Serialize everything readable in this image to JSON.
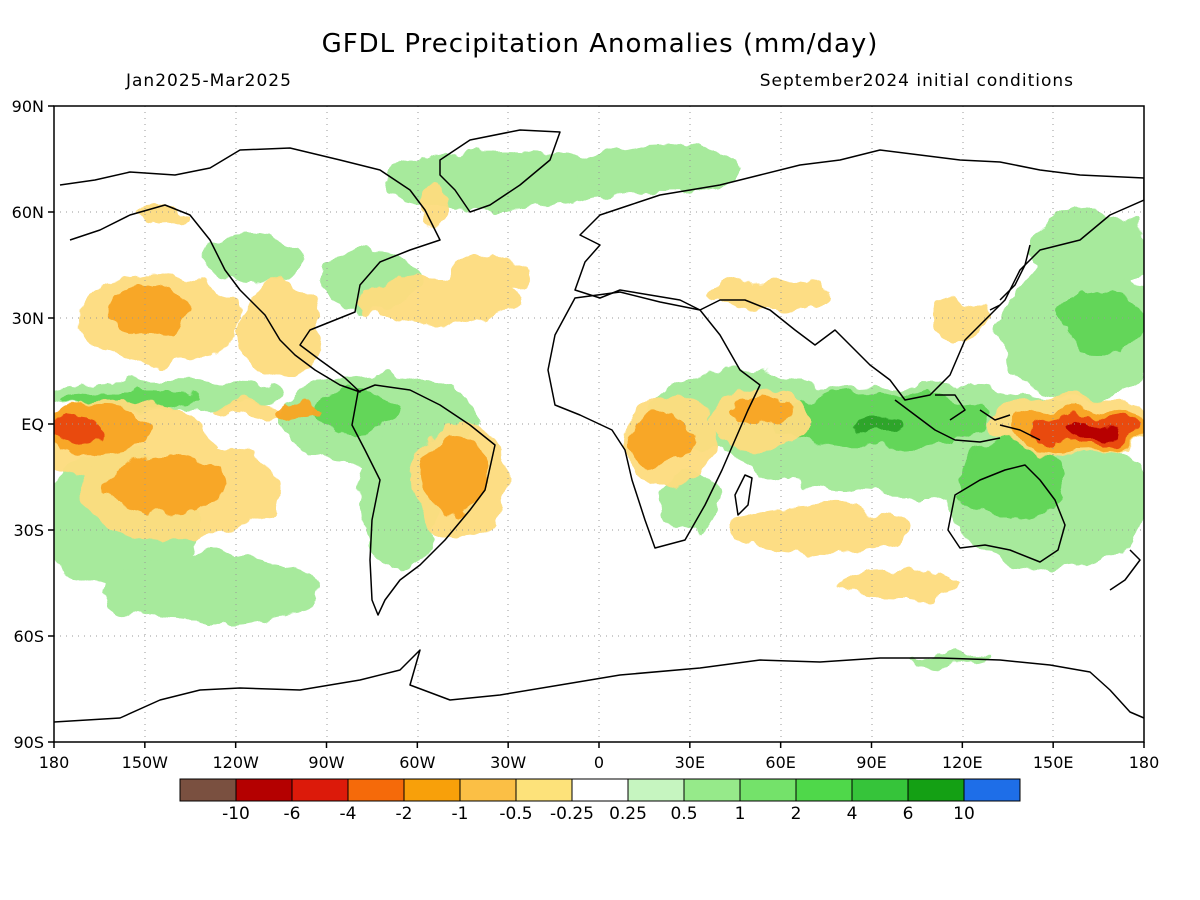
{
  "title": "GFDL Precipitation Anomalies (mm/day)",
  "period": "Jan2025-Mar2025",
  "init": "September2024 initial conditions",
  "lat_labels": [
    "90N",
    "60N",
    "30N",
    "EQ",
    "30S",
    "60S",
    "90S"
  ],
  "lon_labels": [
    "180",
    "150W",
    "120W",
    "90W",
    "60W",
    "30W",
    "0",
    "30E",
    "60E",
    "90E",
    "120E",
    "150E",
    "180"
  ],
  "colorbar": {
    "colors": [
      "#7a5040",
      "#b40000",
      "#dc1a0a",
      "#f56a0a",
      "#f8a00a",
      "#fbbf45",
      "#fde27a",
      "#ffffff",
      "#c6f5c0",
      "#96ea8a",
      "#74e26a",
      "#4fd84a",
      "#36c43a",
      "#14a014",
      "#1e6ee8"
    ],
    "labels": [
      "-10",
      "-6",
      "-4",
      "-2",
      "-1",
      "-0.5",
      "-0.25",
      "0.25",
      "0.5",
      "1",
      "2",
      "4",
      "6",
      "10"
    ]
  }
}
